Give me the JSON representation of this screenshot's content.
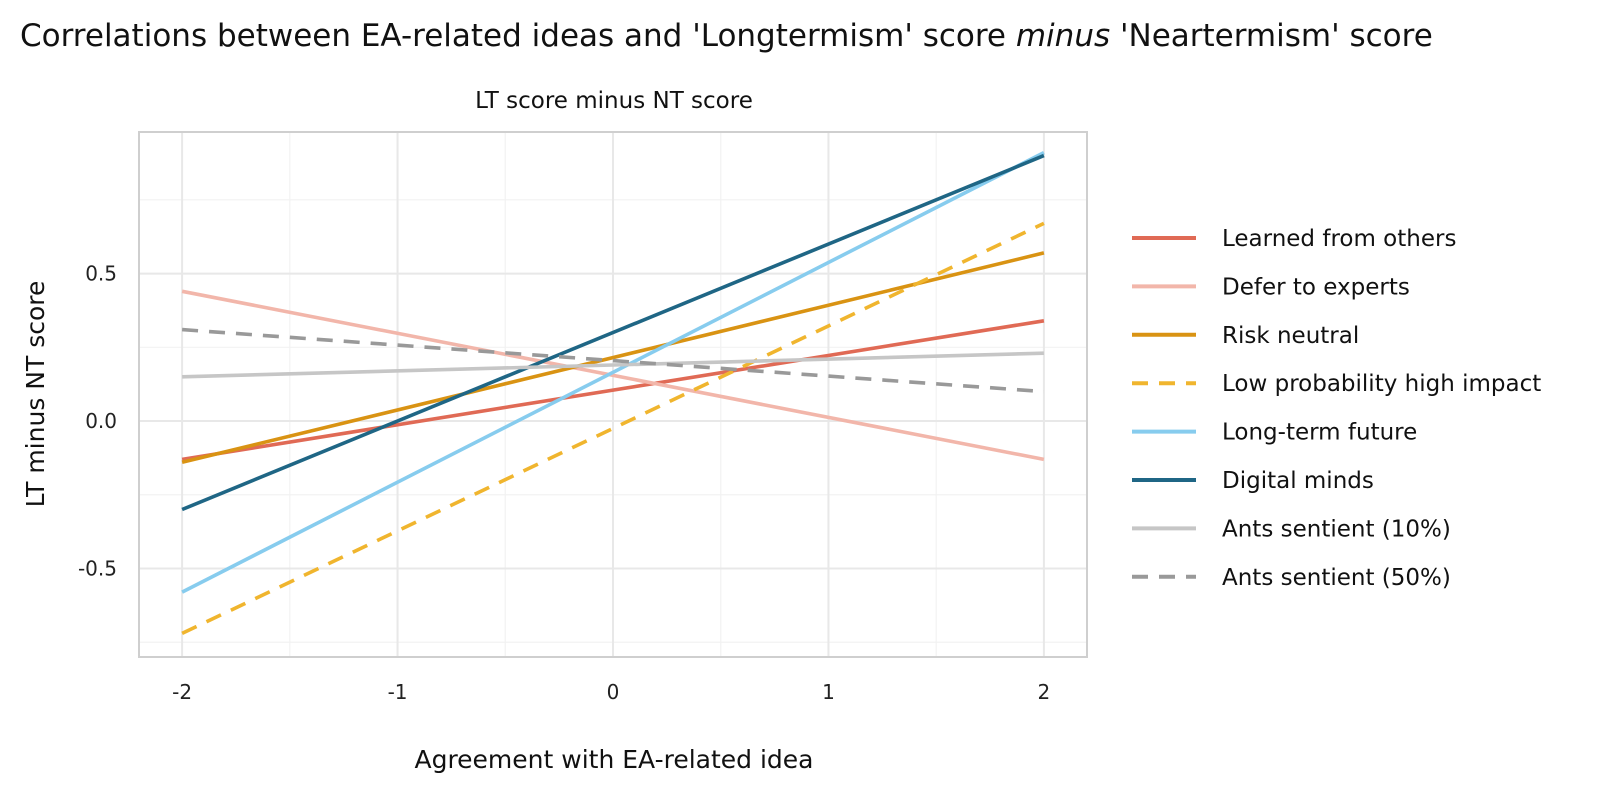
{
  "chart_data": {
    "type": "line",
    "title": {
      "before": "Correlations between EA-related ideas and 'Longtermism' score ",
      "emphasis": "minus",
      "after": " 'Neartermism' score"
    },
    "subtitle": "LT score minus NT score",
    "xlabel": "Agreement with EA-related idea",
    "ylabel": "LT minus NT score",
    "xlim": [
      -2.2,
      2.2
    ],
    "ylim": [
      -0.8,
      0.98
    ],
    "x_ticks": [
      -2,
      -1,
      0,
      1,
      2
    ],
    "x_tick_labels": [
      "-2",
      "-1",
      "0",
      "1",
      "2"
    ],
    "y_ticks": [
      -0.5,
      0.0,
      0.5
    ],
    "y_tick_labels": [
      "-0.5",
      "0.0",
      "0.5"
    ],
    "grid": true,
    "legend_position": "right",
    "x": [
      -2,
      2
    ],
    "series": [
      {
        "name": "Learned from others",
        "values": [
          -0.13,
          0.34
        ],
        "color": "#E06A55",
        "dashed": false
      },
      {
        "name": "Defer to experts",
        "values": [
          0.44,
          -0.13
        ],
        "color": "#F2B6AA",
        "dashed": false
      },
      {
        "name": "Risk neutral",
        "values": [
          -0.14,
          0.57
        ],
        "color": "#D99313",
        "dashed": false
      },
      {
        "name": "Low probability high impact",
        "values": [
          -0.72,
          0.67
        ],
        "color": "#F0B52E",
        "dashed": true
      },
      {
        "name": "Long-term future",
        "values": [
          -0.58,
          0.91
        ],
        "color": "#87CCEE",
        "dashed": false
      },
      {
        "name": "Digital minds",
        "values": [
          -0.3,
          0.9
        ],
        "color": "#1F6685",
        "dashed": false
      },
      {
        "name": "Ants sentient (10%)",
        "values": [
          0.15,
          0.23
        ],
        "color": "#C6C6C6",
        "dashed": false
      },
      {
        "name": "Ants sentient (50%)",
        "values": [
          0.31,
          0.1
        ],
        "color": "#999999",
        "dashed": true
      }
    ]
  }
}
